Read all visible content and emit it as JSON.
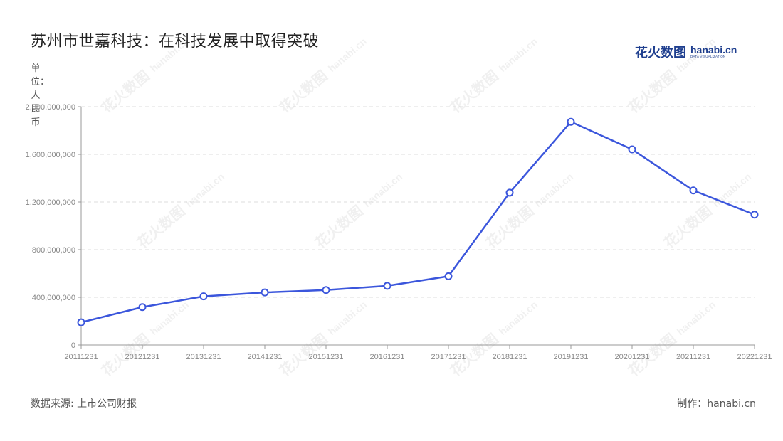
{
  "title": "苏州市世嘉科技：在科技发展中取得突破",
  "unit_label": "单位：人民币",
  "source": "数据来源: 上市公司财报",
  "maker": "制作：hanabi.cn",
  "logo": {
    "cn": "花火数图",
    "en": "hanabi.cn",
    "sub": "DATA VISUALIZATION"
  },
  "watermark": {
    "cn": "花火数图",
    "en": "hanabi.cn"
  },
  "colors": {
    "line": "#3b56dc",
    "grid": "#dddddd",
    "axis": "#999999"
  },
  "chart_data": {
    "type": "line",
    "categories": [
      "20111231",
      "20121231",
      "20131231",
      "20141231",
      "20151231",
      "20161231",
      "20171231",
      "20181231",
      "20191231",
      "20201231",
      "20211231",
      "20221231"
    ],
    "series": [
      {
        "values": [
          190000000,
          318000000,
          408000000,
          441000000,
          461000000,
          496000000,
          577000000,
          1278000000,
          1873000000,
          1642000000,
          1297000000,
          1094000000
        ]
      }
    ],
    "ylim": [
      0,
      2000000000
    ],
    "yticks": [
      0,
      400000000,
      800000000,
      1200000000,
      1600000000,
      2000000000
    ],
    "ytick_labels": [
      "0",
      "400,000,000",
      "800,000,000",
      "1,200,000,000",
      "1,600,000,000",
      "2,000,000,000"
    ],
    "grid": true,
    "legend": "none"
  }
}
